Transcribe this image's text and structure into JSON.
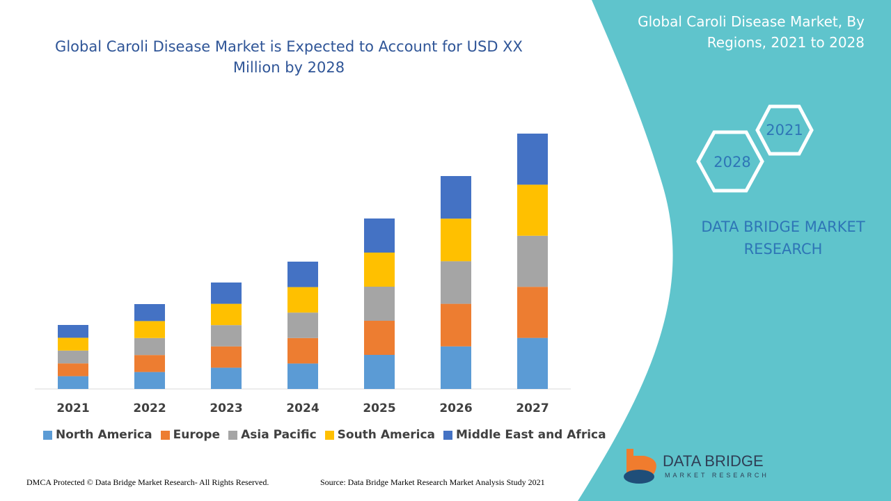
{
  "chart_data": {
    "type": "stacked-bar",
    "title": "Global Caroli Disease Market is Expected to Account for USD XX Million by 2028",
    "categories": [
      "2021",
      "2022",
      "2023",
      "2024",
      "2025",
      "2026",
      "2027"
    ],
    "series": [
      {
        "name": "North America",
        "color": "#5b9bd5",
        "values": [
          18.4,
          24.4,
          30.6,
          36.6,
          49,
          61.2,
          73.4
        ]
      },
      {
        "name": "Europe",
        "color": "#ed7d31",
        "values": [
          18.4,
          24.4,
          30.6,
          36.6,
          49,
          61.2,
          73.4
        ]
      },
      {
        "name": "Asia Pacific",
        "color": "#a5a5a5",
        "values": [
          18.4,
          24.4,
          30.6,
          36.6,
          49,
          61.2,
          73.4
        ]
      },
      {
        "name": "South America",
        "color": "#ffc000",
        "values": [
          18.4,
          24.4,
          30.6,
          36.6,
          49,
          61.2,
          73.4
        ]
      },
      {
        "name": "Middle East and Africa",
        "color": "#4472c4",
        "values": [
          18.4,
          24.4,
          30.6,
          36.6,
          49,
          61.2,
          73.4
        ]
      }
    ],
    "legend": "bottom"
  },
  "side_panel": {
    "title": "Global Caroli Disease Market, By Regions, 2021 to 2028",
    "hexagons": [
      "2021",
      "2028"
    ],
    "brand": "DATA BRIDGE MARKET RESEARCH"
  },
  "logo": {
    "name": "DATA BRIDGE",
    "tagline": "MARKET RESEARCH"
  },
  "footer": {
    "copyright": "DMCA Protected © Data Bridge Market Research- All Rights Reserved.",
    "source": "Source: Data Bridge Market Research Market Analysis Study 2021"
  }
}
